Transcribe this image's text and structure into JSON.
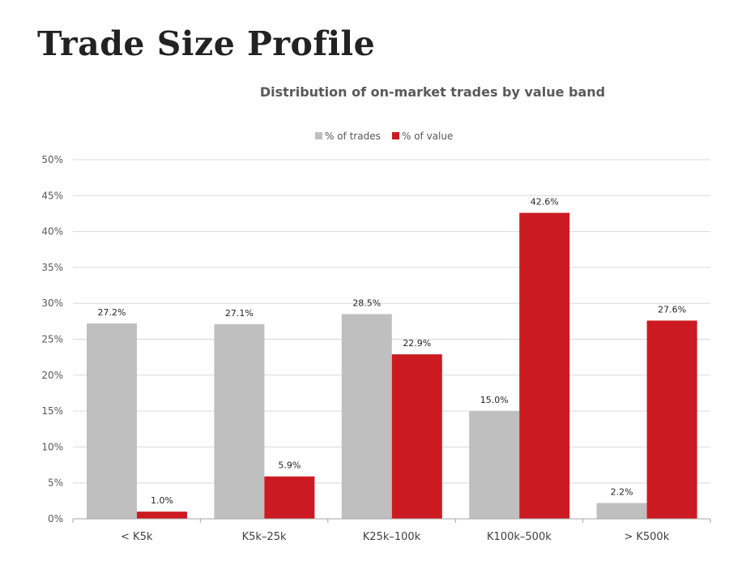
{
  "page": {
    "title": "Trade Size Profile"
  },
  "chart_data": {
    "type": "bar",
    "title": "Distribution of on-market trades by value band",
    "xlabel": "",
    "ylabel": "",
    "ylim": [
      0,
      50
    ],
    "yticks": [
      "0%",
      "5%",
      "10%",
      "15%",
      "20%",
      "25%",
      "30%",
      "35%",
      "40%",
      "45%",
      "50%"
    ],
    "ytick_values": [
      0,
      5,
      10,
      15,
      20,
      25,
      30,
      35,
      40,
      45,
      50
    ],
    "categories": [
      "< K5k",
      "K5k–25k",
      "K25k–100k",
      "K100k–500k",
      "> K500k"
    ],
    "series": [
      {
        "name": "% of trades",
        "color": "#bfbfbf",
        "values": [
          27.2,
          27.1,
          28.5,
          15.0,
          2.2
        ],
        "labels": [
          "27.2%",
          "27.1%",
          "28.5%",
          "15.0%",
          "2.2%"
        ]
      },
      {
        "name": "% of value",
        "color": "#cc1a22",
        "values": [
          1.0,
          5.9,
          22.9,
          42.6,
          27.6
        ],
        "labels": [
          "1.0%",
          "5.9%",
          "22.9%",
          "42.6%",
          "27.6%"
        ]
      }
    ],
    "legend_position": "top-center",
    "grid": true
  }
}
